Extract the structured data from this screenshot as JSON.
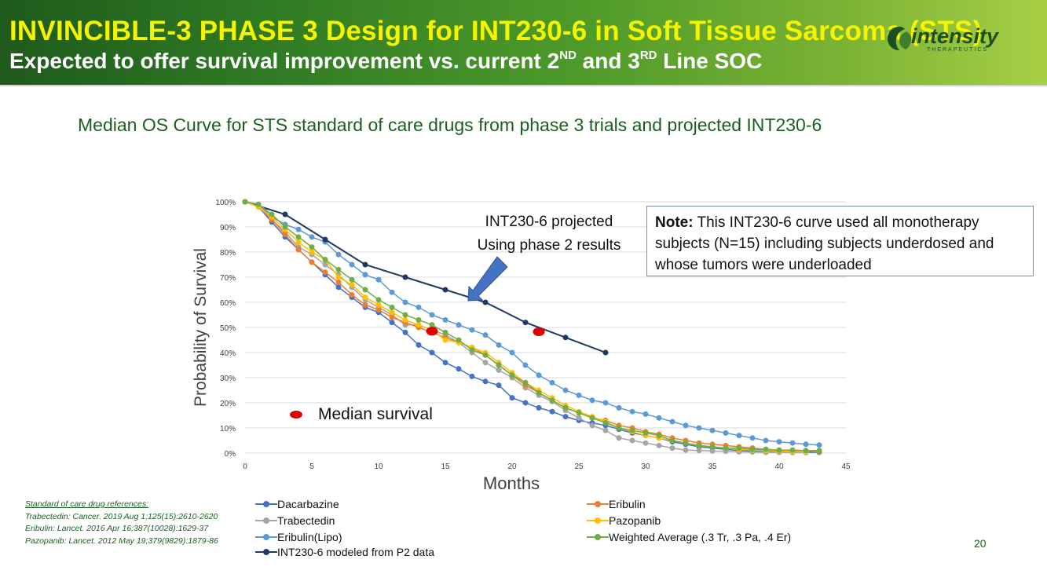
{
  "header": {
    "title": "INVINCIBLE-3 PHASE 3 Design for INT230-6 in Soft Tissue Sarcoma (STS)",
    "subtitle_a": "Expected to offer survival improvement vs. current 2",
    "subtitle_sup1": "ND",
    "subtitle_b": " and 3",
    "subtitle_sup2": "RD",
    "subtitle_c": " Line SOC",
    "logo_word": "intensity",
    "logo_sub": "THERAPEUTICS"
  },
  "chart_title": "Median OS Curve for STS standard of care drugs from phase 3 trials and projected INT230-6",
  "annotations": {
    "projected_line1": "INT230-6 projected",
    "projected_line2": "Using phase 2 results",
    "note_bold": "Note:",
    "note_text": " This INT230-6 curve used all monotherapy subjects (N=15) including subjects underdosed and whose tumors were underloaded",
    "median_label": "Median survival"
  },
  "references": {
    "heading": "Standard of care drug references:",
    "items": [
      "Trabectedin: Cancer. 2019 Aug 1;125(15):2610-2620",
      "Eribulin: Lancet. 2016 Apr 16;387(10028):1629-37",
      "Pazopanib: Lancet. 2012 May 19;379(9829):1879-86"
    ]
  },
  "page_number": "20",
  "chart_data": {
    "type": "line",
    "title": "Median OS Curve for STS standard of care drugs from phase 3 trials and projected INT230-6",
    "xlabel": "Months",
    "ylabel": "Probability of Survival",
    "xlim": [
      0,
      45
    ],
    "ylim": [
      0,
      100
    ],
    "x_ticks": [
      0,
      5,
      10,
      15,
      20,
      25,
      30,
      35,
      40,
      45
    ],
    "y_ticks": [
      0,
      10,
      20,
      30,
      40,
      50,
      60,
      70,
      80,
      90,
      100
    ],
    "y_tick_labels": [
      "0%",
      "10%",
      "20%",
      "30%",
      "40%",
      "50%",
      "60%",
      "70%",
      "80%",
      "90%",
      "100%"
    ],
    "grid": "horizontal",
    "legend_placement": "bottom",
    "series": [
      {
        "name": "Dacarbazine",
        "color": "#4472c4",
        "width": 1.5,
        "marker": 7,
        "points": [
          [
            0,
            100
          ],
          [
            1,
            98
          ],
          [
            2,
            92
          ],
          [
            3,
            86
          ],
          [
            4,
            81
          ],
          [
            5,
            76
          ],
          [
            6,
            71
          ],
          [
            7,
            66
          ],
          [
            8,
            62
          ],
          [
            9,
            58
          ],
          [
            10,
            56
          ],
          [
            11,
            52
          ],
          [
            12,
            48
          ],
          [
            13,
            43
          ],
          [
            14,
            40
          ],
          [
            15,
            36
          ],
          [
            16,
            33.5
          ],
          [
            17,
            30.5
          ],
          [
            18,
            28.5
          ],
          [
            19,
            27
          ],
          [
            20,
            22
          ],
          [
            21,
            20
          ],
          [
            22,
            18
          ],
          [
            23,
            16.5
          ],
          [
            24,
            14.5
          ],
          [
            25,
            13
          ],
          [
            26,
            12
          ],
          [
            27,
            11
          ],
          [
            28,
            9.5
          ],
          [
            29,
            8
          ],
          [
            30,
            7
          ],
          [
            31,
            6
          ],
          [
            32,
            4.5
          ],
          [
            33,
            3.5
          ],
          [
            34,
            2.5
          ],
          [
            35,
            2
          ],
          [
            36,
            1.5
          ],
          [
            37,
            1
          ],
          [
            38,
            0.8
          ],
          [
            39,
            0.6
          ],
          [
            40,
            0.5
          ],
          [
            41,
            0.4
          ],
          [
            42,
            0.3
          ],
          [
            43,
            0.3
          ]
        ]
      },
      {
        "name": "Trabectedin",
        "color": "#a5a5a5",
        "width": 1.5,
        "marker": 7,
        "points": [
          [
            0,
            100
          ],
          [
            1,
            98
          ],
          [
            2,
            93
          ],
          [
            3,
            88
          ],
          [
            4,
            82
          ],
          [
            5,
            79
          ],
          [
            6,
            75
          ],
          [
            7,
            71
          ],
          [
            8,
            66
          ],
          [
            9,
            61
          ],
          [
            10,
            58
          ],
          [
            11,
            55
          ],
          [
            12,
            51
          ],
          [
            13,
            51
          ],
          [
            14,
            49
          ],
          [
            15,
            47
          ],
          [
            16,
            44
          ],
          [
            17,
            40
          ],
          [
            18,
            36
          ],
          [
            19,
            33
          ],
          [
            20,
            30
          ],
          [
            21,
            26
          ],
          [
            22,
            23
          ],
          [
            23,
            20.5
          ],
          [
            24,
            17
          ],
          [
            25,
            14
          ],
          [
            26,
            11
          ],
          [
            27,
            9
          ],
          [
            28,
            6
          ],
          [
            29,
            5
          ],
          [
            30,
            4
          ],
          [
            31,
            3
          ],
          [
            32,
            2
          ],
          [
            33,
            1.2
          ],
          [
            34,
            1
          ],
          [
            35,
            0.8
          ],
          [
            36,
            0.7
          ],
          [
            37,
            0.5
          ],
          [
            38,
            0.4
          ],
          [
            39,
            0.3
          ],
          [
            40,
            0.3
          ],
          [
            41,
            0.2
          ],
          [
            42,
            0.2
          ]
        ]
      },
      {
        "name": "Eribulin(Lipo)",
        "color": "#5b9bd5",
        "width": 1.5,
        "marker": 7,
        "points": [
          [
            0,
            100
          ],
          [
            1,
            99
          ],
          [
            2,
            94
          ],
          [
            3,
            91
          ],
          [
            4,
            89
          ],
          [
            5,
            86
          ],
          [
            6,
            84
          ],
          [
            7,
            79
          ],
          [
            8,
            75
          ],
          [
            9,
            71
          ],
          [
            10,
            69
          ],
          [
            11,
            64
          ],
          [
            12,
            60
          ],
          [
            13,
            58
          ],
          [
            14,
            55
          ],
          [
            15,
            53
          ],
          [
            16,
            51
          ],
          [
            17,
            49
          ],
          [
            18,
            47
          ],
          [
            19,
            43
          ],
          [
            20,
            40
          ],
          [
            21,
            35
          ],
          [
            22,
            31
          ],
          [
            23,
            28
          ],
          [
            24,
            25
          ],
          [
            25,
            23
          ],
          [
            26,
            21
          ],
          [
            27,
            20
          ],
          [
            28,
            18
          ],
          [
            29,
            16.5
          ],
          [
            30,
            15.5
          ],
          [
            31,
            14
          ],
          [
            32,
            12.5
          ],
          [
            33,
            11
          ],
          [
            34,
            10
          ],
          [
            35,
            9
          ],
          [
            36,
            8
          ],
          [
            37,
            7
          ],
          [
            38,
            6
          ],
          [
            39,
            5
          ],
          [
            40,
            4.5
          ],
          [
            41,
            4
          ],
          [
            42,
            3.5
          ],
          [
            43,
            3.2
          ]
        ]
      },
      {
        "name": "INT230-6 modeled from P2 data",
        "color": "#1f3864",
        "width": 2,
        "marker": 7,
        "points": [
          [
            0,
            100
          ],
          [
            3,
            95
          ],
          [
            6,
            85
          ],
          [
            9,
            75
          ],
          [
            12,
            70
          ],
          [
            15,
            65
          ],
          [
            18,
            60
          ],
          [
            21,
            52
          ],
          [
            24,
            46
          ],
          [
            27,
            40
          ]
        ]
      },
      {
        "name": "Eribulin",
        "color": "#ed7d31",
        "width": 1.5,
        "marker": 7,
        "points": [
          [
            0,
            100
          ],
          [
            1,
            98
          ],
          [
            2,
            93
          ],
          [
            3,
            87
          ],
          [
            4,
            81
          ],
          [
            5,
            76
          ],
          [
            6,
            72
          ],
          [
            7,
            68
          ],
          [
            8,
            63
          ],
          [
            9,
            59
          ],
          [
            10,
            57
          ],
          [
            11,
            54
          ],
          [
            12,
            52
          ],
          [
            13,
            50
          ],
          [
            14,
            48
          ],
          [
            15,
            46
          ],
          [
            16,
            44
          ],
          [
            17,
            42
          ],
          [
            18,
            39
          ],
          [
            19,
            35
          ],
          [
            20,
            31
          ],
          [
            21,
            27
          ],
          [
            22,
            24
          ],
          [
            23,
            21
          ],
          [
            24,
            18
          ],
          [
            25,
            16
          ],
          [
            26,
            14
          ],
          [
            27,
            13
          ],
          [
            28,
            11
          ],
          [
            29,
            10
          ],
          [
            30,
            8.5
          ],
          [
            31,
            7.5
          ],
          [
            32,
            6
          ],
          [
            33,
            5
          ],
          [
            34,
            4
          ],
          [
            35,
            3.5
          ],
          [
            36,
            3
          ],
          [
            37,
            2.5
          ],
          [
            38,
            2
          ],
          [
            39,
            1.5
          ],
          [
            40,
            1.2
          ],
          [
            41,
            1
          ],
          [
            42,
            0.8
          ],
          [
            43,
            0.5
          ]
        ]
      },
      {
        "name": "Pazopanib",
        "color": "#ffc000",
        "width": 1.5,
        "marker": 7,
        "points": [
          [
            0,
            100
          ],
          [
            1,
            98
          ],
          [
            2,
            94
          ],
          [
            3,
            89
          ],
          [
            4,
            84
          ],
          [
            5,
            80
          ],
          [
            6,
            77
          ],
          [
            7,
            70
          ],
          [
            8,
            67
          ],
          [
            9,
            62
          ],
          [
            10,
            59
          ],
          [
            11,
            56
          ],
          [
            12,
            53
          ],
          [
            13,
            51
          ],
          [
            14,
            49
          ],
          [
            15,
            45
          ],
          [
            16,
            44
          ],
          [
            17,
            42
          ],
          [
            18,
            40
          ],
          [
            19,
            36
          ],
          [
            20,
            32
          ],
          [
            21,
            28
          ],
          [
            22,
            25
          ],
          [
            23,
            22
          ],
          [
            24,
            19
          ],
          [
            25,
            16.5
          ],
          [
            26,
            14.5
          ],
          [
            27,
            12.5
          ],
          [
            28,
            10
          ],
          [
            29,
            8.5
          ],
          [
            30,
            7
          ],
          [
            31,
            6
          ],
          [
            32,
            5
          ],
          [
            33,
            4
          ],
          [
            34,
            3
          ],
          [
            35,
            2.5
          ],
          [
            36,
            2
          ],
          [
            37,
            1.5
          ],
          [
            38,
            1.2
          ],
          [
            39,
            1
          ],
          [
            40,
            0.8
          ],
          [
            41,
            0.6
          ],
          [
            42,
            0.5
          ]
        ]
      },
      {
        "name": "Weighted Average (.3 Tr, .3 Pa, .4 Er)",
        "color": "#70ad47",
        "width": 1.5,
        "marker": 7,
        "points": [
          [
            0,
            100
          ],
          [
            1,
            99
          ],
          [
            2,
            95
          ],
          [
            3,
            90
          ],
          [
            4,
            86
          ],
          [
            5,
            82
          ],
          [
            6,
            77
          ],
          [
            7,
            73
          ],
          [
            8,
            69
          ],
          [
            9,
            65
          ],
          [
            10,
            61
          ],
          [
            11,
            58
          ],
          [
            12,
            55
          ],
          [
            13,
            53
          ],
          [
            14,
            51
          ],
          [
            15,
            48
          ],
          [
            16,
            45
          ],
          [
            17,
            41
          ],
          [
            18,
            39
          ],
          [
            19,
            35
          ],
          [
            20,
            31
          ],
          [
            21,
            28
          ],
          [
            22,
            24
          ],
          [
            23,
            21
          ],
          [
            24,
            18
          ],
          [
            25,
            16
          ],
          [
            26,
            14
          ],
          [
            27,
            12
          ],
          [
            28,
            10
          ],
          [
            29,
            9
          ],
          [
            30,
            8
          ],
          [
            31,
            7
          ],
          [
            32,
            5
          ],
          [
            33,
            4
          ],
          [
            34,
            3
          ],
          [
            35,
            2.5
          ],
          [
            36,
            2
          ],
          [
            37,
            2
          ],
          [
            38,
            1.5
          ],
          [
            39,
            1.5
          ],
          [
            40,
            1.2
          ],
          [
            41,
            1.2
          ],
          [
            42,
            1
          ],
          [
            43,
            1
          ]
        ]
      }
    ],
    "median_points": [
      [
        14,
        48.5
      ],
      [
        22,
        48.3
      ]
    ],
    "legend_order": [
      0,
      4,
      1,
      5,
      2,
      6,
      3
    ]
  }
}
